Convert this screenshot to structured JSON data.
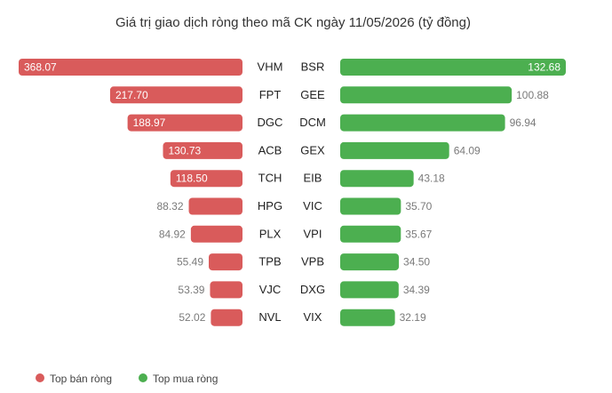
{
  "chart_data": {
    "type": "bar",
    "title": "Giá trị giao dịch ròng theo mã CK ngày 11/05/2026 (tỷ đồng)",
    "sell": {
      "name": "Top bán ròng",
      "color": "#d95b5b",
      "tickers": [
        "VHM",
        "FPT",
        "DGC",
        "ACB",
        "TCH",
        "HPG",
        "PLX",
        "TPB",
        "VJC",
        "NVL"
      ],
      "values": [
        368.07,
        217.7,
        188.97,
        130.73,
        118.5,
        88.32,
        84.92,
        55.49,
        53.39,
        52.02
      ],
      "labels": [
        "368.07",
        "217.70",
        "188.97",
        "130.73",
        "118.50",
        "88.32",
        "84.92",
        "55.49",
        "53.39",
        "52.02"
      ]
    },
    "buy": {
      "name": "Top mua ròng",
      "color": "#4caf50",
      "tickers": [
        "BSR",
        "GEE",
        "DCM",
        "GEX",
        "EIB",
        "VIC",
        "VPI",
        "VPB",
        "DXG",
        "VIX"
      ],
      "values": [
        132.68,
        100.88,
        96.94,
        64.09,
        43.18,
        35.7,
        35.67,
        34.5,
        34.39,
        32.19
      ],
      "labels": [
        "132.68",
        "100.88",
        "96.94",
        "64.09",
        "43.18",
        "35.70",
        "35.67",
        "34.50",
        "34.39",
        "32.19"
      ]
    },
    "legend_position": "bottom-left"
  }
}
